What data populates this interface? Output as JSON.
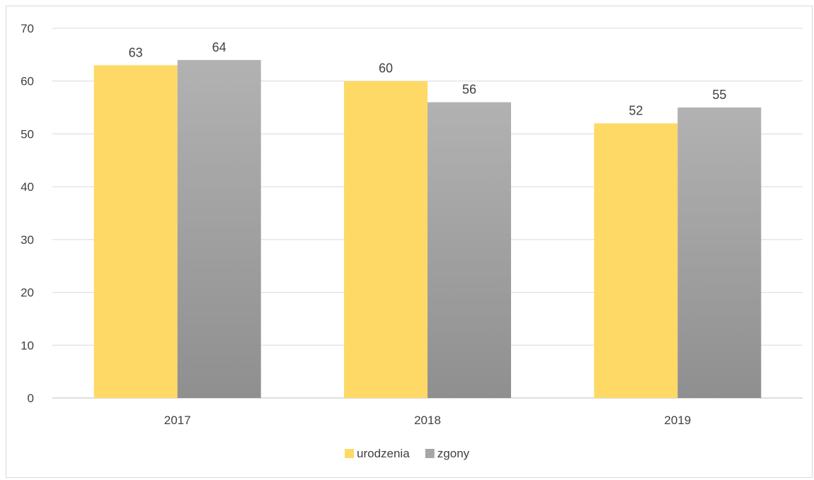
{
  "chart_data": {
    "type": "bar",
    "categories": [
      "2017",
      "2018",
      "2019"
    ],
    "series": [
      {
        "name": "urodzenia",
        "values": [
          63,
          60,
          52
        ],
        "color": "#ffd966"
      },
      {
        "name": "zgony",
        "values": [
          64,
          56,
          55
        ],
        "color": "#a6a6a6"
      }
    ],
    "ylim": [
      0,
      70
    ],
    "yticks": [
      0,
      10,
      20,
      30,
      40,
      50,
      60,
      70
    ],
    "grid": true,
    "data_labels": true,
    "legend_position": "bottom",
    "title": "",
    "xlabel": "",
    "ylabel": ""
  }
}
